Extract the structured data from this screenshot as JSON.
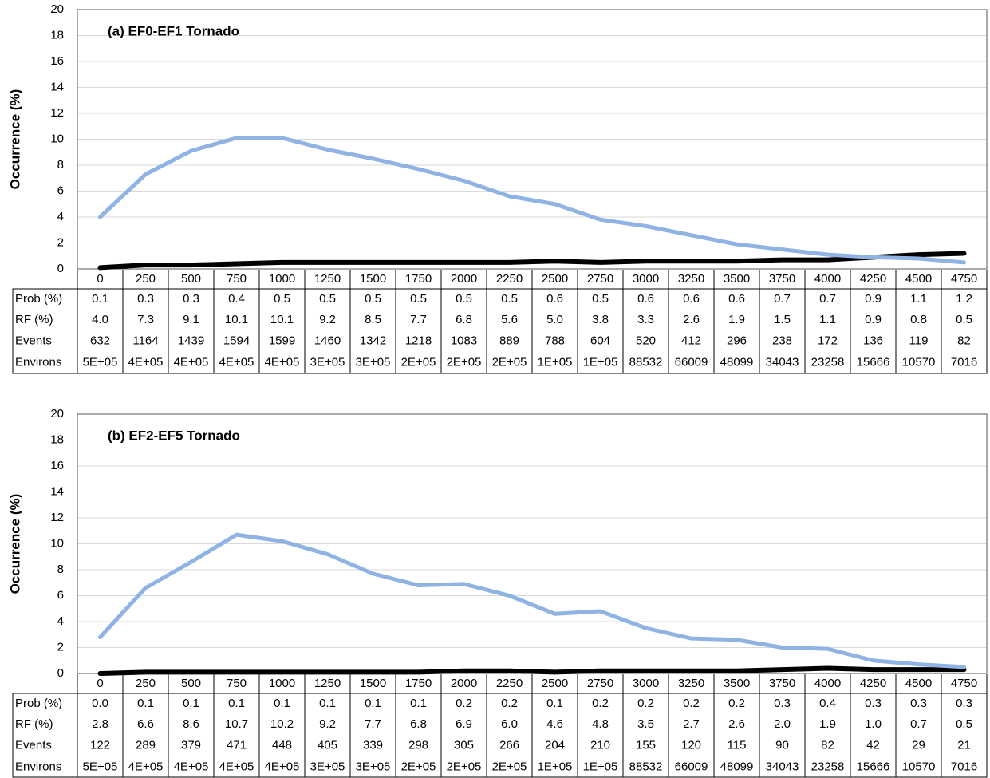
{
  "chart_data": [
    {
      "type": "line",
      "title": "(a) EF0-EF1 Tornado",
      "y_label": "Occurrence (%)",
      "categories": [
        0,
        250,
        500,
        750,
        1000,
        1250,
        1500,
        1750,
        2000,
        2250,
        2500,
        2750,
        3000,
        3250,
        3500,
        3750,
        4000,
        4250,
        4500,
        4750
      ],
      "ylim": [
        0,
        20
      ],
      "yticks": [
        0,
        2,
        4,
        6,
        8,
        10,
        12,
        14,
        16,
        18,
        20
      ],
      "grid": true,
      "series": [
        {
          "name": "Prob (%)",
          "color": "#000000",
          "values": [
            0.1,
            0.3,
            0.3,
            0.4,
            0.5,
            0.5,
            0.5,
            0.5,
            0.5,
            0.5,
            0.6,
            0.5,
            0.6,
            0.6,
            0.6,
            0.7,
            0.7,
            0.9,
            1.1,
            1.2
          ],
          "value_labels": [
            "0.1",
            "0.3",
            "0.3",
            "0.4",
            "0.5",
            "0.5",
            "0.5",
            "0.5",
            "0.5",
            "0.5",
            "0.6",
            "0.5",
            "0.6",
            "0.6",
            "0.6",
            "0.7",
            "0.7",
            "0.9",
            "1.1",
            "1.2"
          ]
        },
        {
          "name": "RF (%)",
          "color": "#8fb4e3",
          "values": [
            4,
            7.3,
            9.1,
            10.1,
            10.1,
            9.2,
            8.5,
            7.7,
            6.8,
            5.6,
            5,
            3.8,
            3.3,
            2.6,
            1.9,
            1.5,
            1.1,
            0.9,
            0.8,
            0.5
          ],
          "value_labels": [
            "4.0",
            "7.3",
            "9.1",
            "10.1",
            "10.1",
            "9.2",
            "8.5",
            "7.7",
            "6.8",
            "5.6",
            "5.0",
            "3.8",
            "3.3",
            "2.6",
            "1.9",
            "1.5",
            "1.1",
            "0.9",
            "0.8",
            "0.5"
          ]
        }
      ],
      "table": [
        {
          "name": "Events",
          "values": [
            632,
            1164,
            1439,
            1594,
            1599,
            1460,
            1342,
            1218,
            1083,
            889,
            788,
            604,
            520,
            412,
            296,
            238,
            172,
            136,
            119,
            82
          ]
        },
        {
          "name": "Environs",
          "values": [
            500000,
            400000,
            400000,
            400000,
            400000,
            300000,
            300000,
            200000,
            200000,
            200000,
            100000,
            100000,
            88532,
            66009,
            48099,
            34043,
            23258,
            15666,
            10570,
            7016
          ],
          "value_labels": [
            "5E+05",
            "4E+05",
            "4E+05",
            "4E+05",
            "4E+05",
            "3E+05",
            "3E+05",
            "2E+05",
            "2E+05",
            "2E+05",
            "1E+05",
            "1E+05",
            "88532",
            "66009",
            "48099",
            "34043",
            "23258",
            "15666",
            "10570",
            "7016"
          ]
        }
      ]
    },
    {
      "type": "line",
      "title": "(b) EF2-EF5 Tornado",
      "y_label": "Occurrence (%)",
      "categories": [
        0,
        250,
        500,
        750,
        1000,
        1250,
        1500,
        1750,
        2000,
        2250,
        2500,
        2750,
        3000,
        3250,
        3500,
        3750,
        4000,
        4250,
        4500,
        4750
      ],
      "ylim": [
        0,
        20
      ],
      "yticks": [
        0,
        2,
        4,
        6,
        8,
        10,
        12,
        14,
        16,
        18,
        20
      ],
      "grid": true,
      "series": [
        {
          "name": "Prob (%)",
          "color": "#000000",
          "values": [
            0,
            0.1,
            0.1,
            0.1,
            0.1,
            0.1,
            0.1,
            0.1,
            0.2,
            0.2,
            0.1,
            0.2,
            0.2,
            0.2,
            0.2,
            0.3,
            0.4,
            0.3,
            0.3,
            0.3
          ],
          "value_labels": [
            "0.0",
            "0.1",
            "0.1",
            "0.1",
            "0.1",
            "0.1",
            "0.1",
            "0.1",
            "0.2",
            "0.2",
            "0.1",
            "0.2",
            "0.2",
            "0.2",
            "0.2",
            "0.3",
            "0.4",
            "0.3",
            "0.3",
            "0.3"
          ]
        },
        {
          "name": "RF (%)",
          "color": "#8fb4e3",
          "values": [
            2.8,
            6.6,
            8.6,
            10.7,
            10.2,
            9.2,
            7.7,
            6.8,
            6.9,
            6,
            4.6,
            4.8,
            3.5,
            2.7,
            2.6,
            2,
            1.9,
            1,
            0.7,
            0.5
          ],
          "value_labels": [
            "2.8",
            "6.6",
            "8.6",
            "10.7",
            "10.2",
            "9.2",
            "7.7",
            "6.8",
            "6.9",
            "6.0",
            "4.6",
            "4.8",
            "3.5",
            "2.7",
            "2.6",
            "2.0",
            "1.9",
            "1.0",
            "0.7",
            "0.5"
          ]
        }
      ],
      "table": [
        {
          "name": "Events",
          "values": [
            122,
            289,
            379,
            471,
            448,
            405,
            339,
            298,
            305,
            266,
            204,
            210,
            155,
            120,
            115,
            90,
            82,
            42,
            29,
            21
          ]
        },
        {
          "name": "Environs",
          "values": [
            500000,
            400000,
            400000,
            400000,
            400000,
            300000,
            300000,
            200000,
            200000,
            200000,
            100000,
            100000,
            88532,
            66009,
            48099,
            34043,
            23258,
            15666,
            10570,
            7016
          ],
          "value_labels": [
            "5E+05",
            "4E+05",
            "4E+05",
            "4E+05",
            "4E+05",
            "3E+05",
            "3E+05",
            "2E+05",
            "2E+05",
            "2E+05",
            "1E+05",
            "1E+05",
            "88532",
            "66009",
            "48099",
            "34043",
            "23258",
            "15666",
            "10570",
            "7016"
          ]
        }
      ]
    }
  ]
}
